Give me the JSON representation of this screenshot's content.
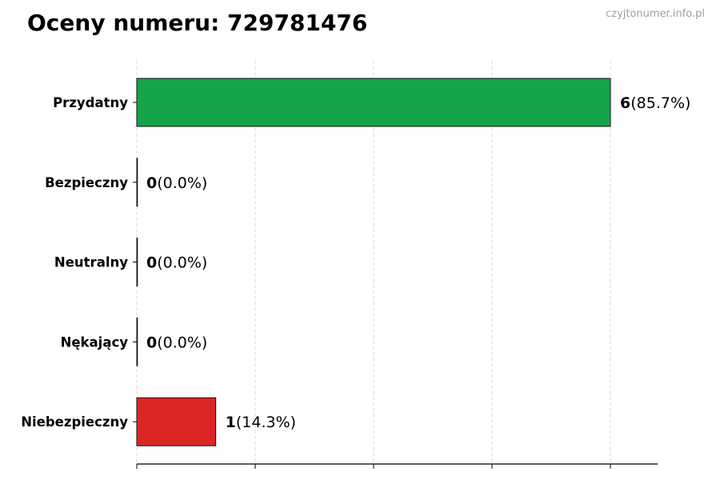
{
  "title": "Oceny numeru: 729781476",
  "watermark": "czyjtonumer.info.pl",
  "chart_data": {
    "type": "bar",
    "orientation": "horizontal",
    "categories": [
      "Przydatny",
      "Bezpieczny",
      "Neutralny",
      "Nękający",
      "Niebezpieczny"
    ],
    "values": [
      6,
      0,
      0,
      0,
      1
    ],
    "labels": [
      "(85.7%)",
      "(0.0%)",
      "(0.0%)",
      "(0.0%)",
      "(14.3%)"
    ],
    "colors": [
      "#17a34a",
      "#888888",
      "#888888",
      "#888888",
      "#dc2626"
    ],
    "xlim": [
      0,
      6.6
    ],
    "xticks": [
      0,
      1.5,
      3,
      4.5,
      6
    ],
    "grid": "x, dashed",
    "xtick_labels_shown": false
  }
}
